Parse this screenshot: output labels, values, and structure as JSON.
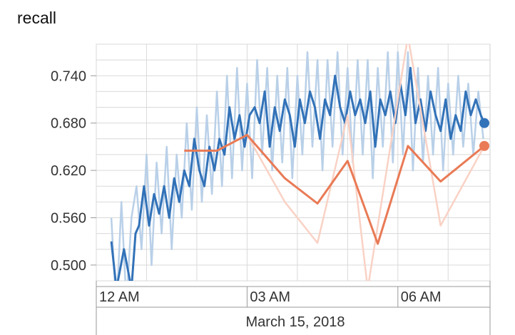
{
  "chart_data": {
    "type": "line",
    "title": "recall",
    "xlabel": "March 15, 2018",
    "ylabel": "",
    "x_domain": [
      "2018-03-15T00:00",
      "2018-03-15T07:50"
    ],
    "ylim": [
      0.48,
      0.78
    ],
    "x_ticks": [
      {
        "t": "2018-03-15T00:00",
        "label": "12 AM"
      },
      {
        "t": "2018-03-15T03:00",
        "label": "03 AM"
      },
      {
        "t": "2018-03-15T06:00",
        "label": "06 AM"
      }
    ],
    "y_ticks": [
      {
        "v": 0.5,
        "label": "0.500"
      },
      {
        "v": 0.56,
        "label": "0.560"
      },
      {
        "v": 0.62,
        "label": "0.620"
      },
      {
        "v": 0.68,
        "label": "0.680"
      },
      {
        "v": 0.74,
        "label": "0.740"
      }
    ],
    "grid": true,
    "series": [
      {
        "color": "#3272b8",
        "raw_color": "#b9d0e8",
        "smoothed": [
          [
            0.3,
            0.53
          ],
          [
            0.4,
            0.47
          ],
          [
            0.55,
            0.52
          ],
          [
            0.7,
            0.47
          ],
          [
            0.78,
            0.54
          ],
          [
            0.85,
            0.55
          ],
          [
            0.95,
            0.6
          ],
          [
            1.05,
            0.55
          ],
          [
            1.15,
            0.59
          ],
          [
            1.25,
            0.565
          ],
          [
            1.35,
            0.6
          ],
          [
            1.45,
            0.56
          ],
          [
            1.55,
            0.61
          ],
          [
            1.65,
            0.58
          ],
          [
            1.75,
            0.62
          ],
          [
            1.85,
            0.6
          ],
          [
            1.95,
            0.66
          ],
          [
            2.05,
            0.62
          ],
          [
            2.15,
            0.6
          ],
          [
            2.25,
            0.65
          ],
          [
            2.35,
            0.62
          ],
          [
            2.45,
            0.66
          ],
          [
            2.55,
            0.64
          ],
          [
            2.65,
            0.7
          ],
          [
            2.75,
            0.66
          ],
          [
            2.85,
            0.69
          ],
          [
            2.95,
            0.65
          ],
          [
            3.05,
            0.69
          ],
          [
            3.15,
            0.7
          ],
          [
            3.25,
            0.68
          ],
          [
            3.35,
            0.72
          ],
          [
            3.45,
            0.65
          ],
          [
            3.55,
            0.7
          ],
          [
            3.65,
            0.67
          ],
          [
            3.75,
            0.71
          ],
          [
            3.85,
            0.69
          ],
          [
            3.95,
            0.65
          ],
          [
            4.05,
            0.71
          ],
          [
            4.15,
            0.68
          ],
          [
            4.25,
            0.72
          ],
          [
            4.35,
            0.7
          ],
          [
            4.45,
            0.66
          ],
          [
            4.55,
            0.71
          ],
          [
            4.65,
            0.69
          ],
          [
            4.75,
            0.74
          ],
          [
            4.85,
            0.7
          ],
          [
            4.95,
            0.68
          ],
          [
            5.05,
            0.72
          ],
          [
            5.15,
            0.69
          ],
          [
            5.25,
            0.71
          ],
          [
            5.35,
            0.68
          ],
          [
            5.45,
            0.72
          ],
          [
            5.55,
            0.65
          ],
          [
            5.65,
            0.71
          ],
          [
            5.75,
            0.69
          ],
          [
            5.85,
            0.72
          ],
          [
            5.95,
            0.68
          ],
          [
            6.05,
            0.73
          ],
          [
            6.15,
            0.69
          ],
          [
            6.25,
            0.75
          ],
          [
            6.35,
            0.68
          ],
          [
            6.45,
            0.71
          ],
          [
            6.55,
            0.67
          ],
          [
            6.65,
            0.72
          ],
          [
            6.75,
            0.69
          ],
          [
            6.85,
            0.67
          ],
          [
            6.95,
            0.71
          ],
          [
            7.05,
            0.66
          ],
          [
            7.15,
            0.69
          ],
          [
            7.25,
            0.67
          ],
          [
            7.35,
            0.72
          ],
          [
            7.45,
            0.69
          ],
          [
            7.55,
            0.71
          ],
          [
            7.65,
            0.69
          ],
          [
            7.72,
            0.68
          ]
        ],
        "raw": [
          [
            0.3,
            0.56
          ],
          [
            0.4,
            0.44
          ],
          [
            0.5,
            0.58
          ],
          [
            0.6,
            0.45
          ],
          [
            0.7,
            0.56
          ],
          [
            0.8,
            0.6
          ],
          [
            0.9,
            0.52
          ],
          [
            1.0,
            0.64
          ],
          [
            1.1,
            0.5
          ],
          [
            1.2,
            0.63
          ],
          [
            1.3,
            0.54
          ],
          [
            1.4,
            0.65
          ],
          [
            1.5,
            0.52
          ],
          [
            1.6,
            0.64
          ],
          [
            1.7,
            0.56
          ],
          [
            1.8,
            0.68
          ],
          [
            1.9,
            0.57
          ],
          [
            2.0,
            0.7
          ],
          [
            2.1,
            0.58
          ],
          [
            2.2,
            0.69
          ],
          [
            2.3,
            0.59
          ],
          [
            2.4,
            0.72
          ],
          [
            2.5,
            0.6
          ],
          [
            2.6,
            0.74
          ],
          [
            2.7,
            0.61
          ],
          [
            2.8,
            0.75
          ],
          [
            2.9,
            0.62
          ],
          [
            3.0,
            0.73
          ],
          [
            3.1,
            0.61
          ],
          [
            3.2,
            0.76
          ],
          [
            3.3,
            0.64
          ],
          [
            3.4,
            0.75
          ],
          [
            3.5,
            0.62
          ],
          [
            3.6,
            0.74
          ],
          [
            3.7,
            0.63
          ],
          [
            3.8,
            0.75
          ],
          [
            3.9,
            0.61
          ],
          [
            4.0,
            0.74
          ],
          [
            4.1,
            0.64
          ],
          [
            4.2,
            0.77
          ],
          [
            4.3,
            0.65
          ],
          [
            4.4,
            0.76
          ],
          [
            4.5,
            0.62
          ],
          [
            4.6,
            0.76
          ],
          [
            4.7,
            0.65
          ],
          [
            4.8,
            0.77
          ],
          [
            4.9,
            0.64
          ],
          [
            5.0,
            0.75
          ],
          [
            5.1,
            0.63
          ],
          [
            5.2,
            0.76
          ],
          [
            5.3,
            0.64
          ],
          [
            5.4,
            0.76
          ],
          [
            5.5,
            0.61
          ],
          [
            5.6,
            0.75
          ],
          [
            5.7,
            0.65
          ],
          [
            5.8,
            0.77
          ],
          [
            5.9,
            0.63
          ],
          [
            6.0,
            0.77
          ],
          [
            6.1,
            0.64
          ],
          [
            6.2,
            0.77
          ],
          [
            6.3,
            0.62
          ],
          [
            6.4,
            0.75
          ],
          [
            6.5,
            0.63
          ],
          [
            6.6,
            0.74
          ],
          [
            6.7,
            0.64
          ],
          [
            6.8,
            0.75
          ],
          [
            6.9,
            0.62
          ],
          [
            7.0,
            0.73
          ],
          [
            7.1,
            0.64
          ],
          [
            7.2,
            0.74
          ],
          [
            7.3,
            0.65
          ],
          [
            7.4,
            0.73
          ],
          [
            7.5,
            0.64
          ],
          [
            7.6,
            0.72
          ],
          [
            7.7,
            0.66
          ]
        ]
      },
      {
        "color": "#e97a55",
        "raw_color": "#f9d2c5",
        "smoothed": [
          [
            1.75,
            0.645
          ],
          [
            2.4,
            0.645
          ],
          [
            3.0,
            0.665
          ],
          [
            3.75,
            0.61
          ],
          [
            4.4,
            0.578
          ],
          [
            5.0,
            0.632
          ],
          [
            5.6,
            0.527
          ],
          [
            6.2,
            0.651
          ],
          [
            6.85,
            0.606
          ],
          [
            7.72,
            0.651
          ]
        ],
        "raw": [
          [
            1.75,
            0.645
          ],
          [
            2.4,
            0.645
          ],
          [
            3.0,
            0.665
          ],
          [
            3.75,
            0.58
          ],
          [
            4.4,
            0.528
          ],
          [
            5.0,
            0.69
          ],
          [
            5.4,
            0.47
          ],
          [
            6.2,
            0.79
          ],
          [
            6.85,
            0.55
          ],
          [
            7.72,
            0.651
          ]
        ]
      }
    ]
  }
}
